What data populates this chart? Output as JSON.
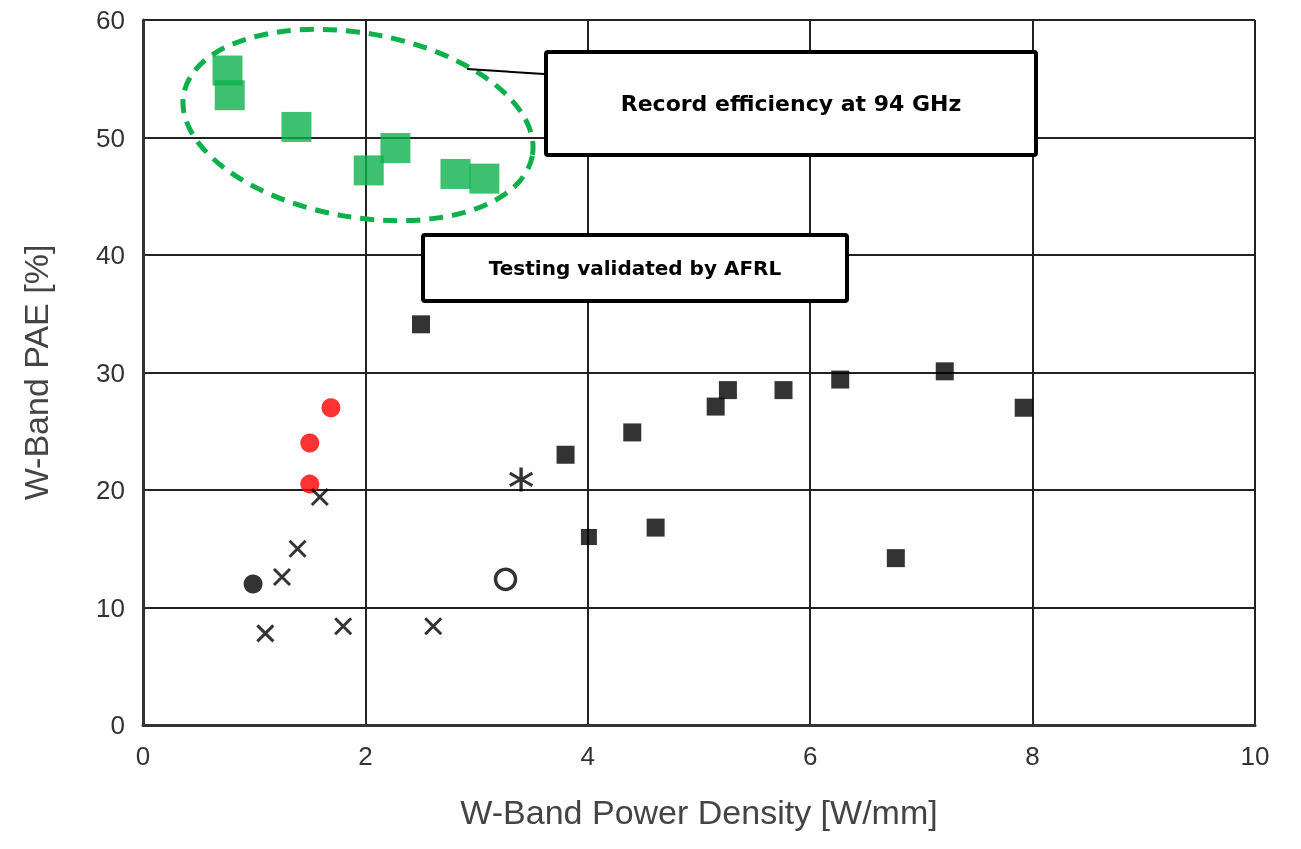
{
  "chart_data": {
    "type": "scatter",
    "xlabel": "W-Band Power Density [W/mm]",
    "ylabel": "W-Band PAE [%]",
    "xlim": [
      0,
      10
    ],
    "xticks": [
      0,
      2,
      4,
      6,
      8,
      10
    ],
    "ylim": [
      0,
      60
    ],
    "yticks": [
      0,
      10,
      20,
      30,
      40,
      50,
      60
    ],
    "grid": true,
    "annotations": [
      "Record efficiency at 94 GHz",
      "Testing validated by AFRL"
    ],
    "series": [
      {
        "color": "#0db04b",
        "marker": "square",
        "x": [
          0.76,
          0.78,
          1.38,
          2.03,
          2.27,
          2.81,
          3.07
        ],
        "values": [
          55.7,
          53.6,
          50.9,
          47.2,
          49.1,
          46.9,
          46.5
        ]
      },
      {
        "color": "#000000",
        "marker": "square",
        "x": [
          2.5,
          3.8,
          4.4,
          4.61,
          5.15,
          5.26,
          5.76,
          6.27,
          6.77,
          7.21,
          7.92
        ],
        "values": [
          34.1,
          23.0,
          24.9,
          16.8,
          27.1,
          28.5,
          28.5,
          29.4,
          14.2,
          30.1,
          27.0
        ]
      },
      {
        "color": "#ff0000",
        "marker": "circle",
        "x": [
          1.69,
          1.5,
          1.5
        ],
        "values": [
          27.0,
          24.0,
          20.5
        ]
      },
      {
        "color": "#000000",
        "marker": "cross",
        "x": [
          1.59,
          1.1,
          1.8,
          2.61
        ],
        "values": [
          19.4,
          7.8,
          8.4,
          8.4
        ]
      },
      {
        "color": "#000000",
        "marker": "cross",
        "x": [
          1.39,
          1.25
        ],
        "values": [
          15.0,
          12.6
        ]
      },
      {
        "color": "#000000",
        "marker": "circle",
        "x": [
          0.99
        ],
        "values": [
          12.0
        ]
      },
      {
        "color": "#000000",
        "marker": "open_circle",
        "x": [
          3.26
        ],
        "values": [
          12.4
        ]
      },
      {
        "color": "#000000",
        "marker": "star",
        "x": [
          3.4
        ],
        "values": [
          20.9
        ]
      },
      {
        "color": "#000000",
        "marker": "square",
        "x": [
          4.01
        ],
        "values": [
          16.0
        ]
      }
    ]
  }
}
